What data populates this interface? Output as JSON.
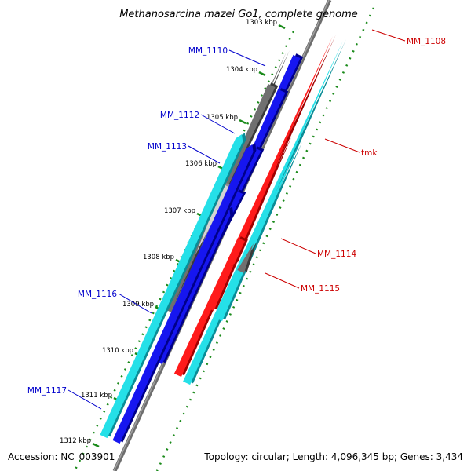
{
  "header": {
    "title": "Methanosarcina mazei Go1, complete genome"
  },
  "footer": {
    "accession": "Accession: NC_003901",
    "summary": "Topology: circular; Length: 4,096,345 bp; Genes: 3,434"
  },
  "colors": {
    "backbone": "#7a7a7a",
    "tick_dots": "#1a8a1a",
    "label_plus": "#0000cc",
    "label_minus": "#cc0000"
  },
  "ticks": [
    "1303 kbp",
    "1304 kbp",
    "1305 kbp",
    "1306 kbp",
    "1307 kbp",
    "1308 kbp",
    "1309 kbp",
    "1310 kbp",
    "1311 kbp",
    "1312 kbp"
  ],
  "genes": [
    {
      "id": "g-1109a",
      "strand": "minus",
      "color": "gray",
      "label": ""
    },
    {
      "id": "g-1108",
      "strand": "minus",
      "color": "red",
      "label": "MM_1108"
    },
    {
      "id": "g-1108b",
      "strand": "minus",
      "color": "cyan",
      "label": ""
    },
    {
      "id": "g-1109b",
      "strand": "plus",
      "color": "blue",
      "label": ""
    },
    {
      "id": "g-1110a",
      "strand": "plus",
      "color": "gray",
      "label": ""
    },
    {
      "id": "g-1110",
      "strand": "plus",
      "color": "blue",
      "label": "MM_1110"
    },
    {
      "id": "g-tmk-r",
      "strand": "minus",
      "color": "red",
      "label": ""
    },
    {
      "id": "g-tmk",
      "strand": "minus",
      "color": "cyan",
      "label": "tmk"
    },
    {
      "id": "g-1112",
      "strand": "plus",
      "color": "blue",
      "label": "MM_1112"
    },
    {
      "id": "g-1113a",
      "strand": "plus",
      "color": "lightgray",
      "label": ""
    },
    {
      "id": "g-1113",
      "strand": "plus",
      "color": "blue",
      "label": "MM_1113"
    },
    {
      "id": "g-1114r",
      "strand": "minus",
      "color": "red",
      "label": ""
    },
    {
      "id": "g-1114",
      "strand": "minus",
      "color": "gray",
      "label": "MM_1114"
    },
    {
      "id": "g-1115",
      "strand": "minus",
      "color": "red",
      "label": "MM_1115"
    },
    {
      "id": "g-1116",
      "strand": "plus",
      "color": "blue",
      "label": "MM_1116"
    },
    {
      "id": "g-1117c",
      "strand": "plus",
      "color": "cyan",
      "label": ""
    },
    {
      "id": "g-1117",
      "strand": "plus",
      "color": "blue",
      "label": "MM_1117"
    }
  ]
}
